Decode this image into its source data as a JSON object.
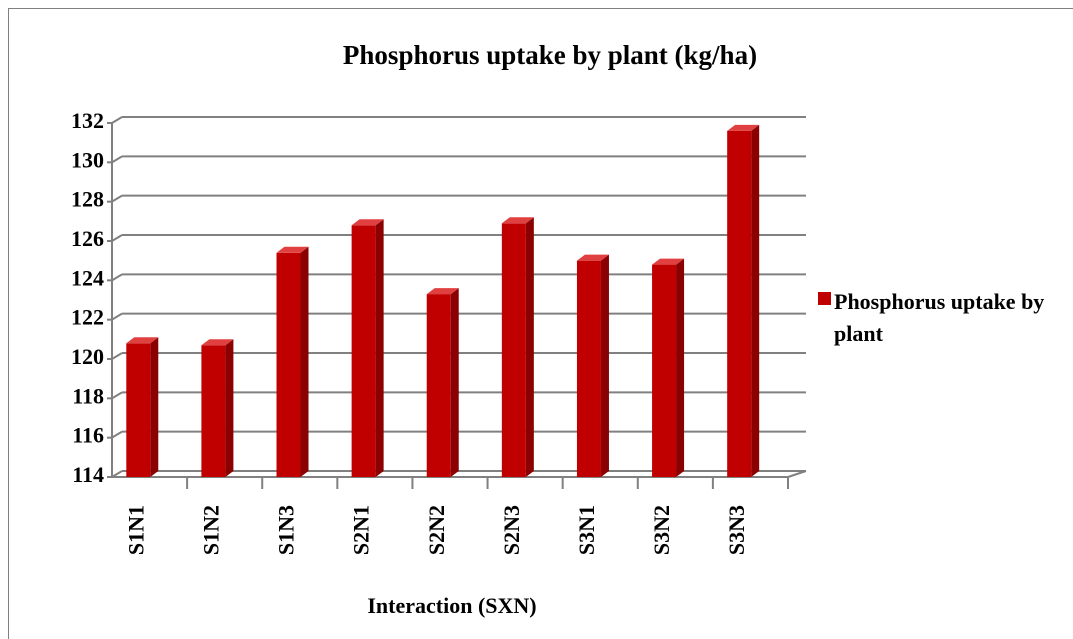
{
  "chart_data": {
    "type": "bar3d",
    "title": "Phosphorus uptake by plant (kg/ha)",
    "x_label": "Interaction (SXN)",
    "categories": [
      "S1N1",
      "S1N2",
      "S1N3",
      "S2N1",
      "S2N2",
      "S2N3",
      "S3N1",
      "S3N2",
      "S3N3"
    ],
    "series": [
      {
        "name": "Phosphorus uptake by plant",
        "color": "#c00000",
        "values": [
          120.8,
          120.7,
          125.4,
          126.8,
          123.3,
          126.9,
          125.0,
          124.8,
          131.6
        ]
      }
    ],
    "ylim": [
      114,
      132
    ],
    "yticks": [
      114,
      116,
      118,
      120,
      122,
      124,
      126,
      128,
      130,
      132
    ],
    "grid": true,
    "legend": "right"
  }
}
